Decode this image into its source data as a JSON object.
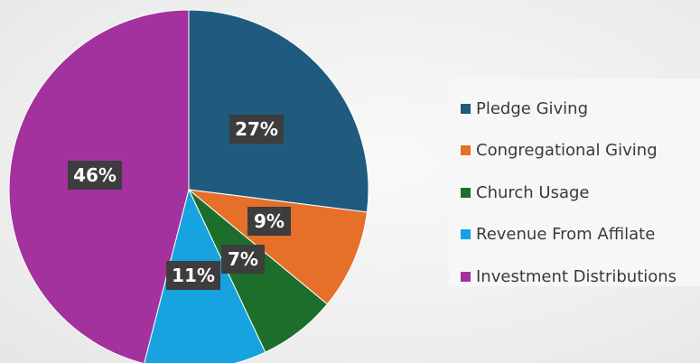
{
  "chart_data": {
    "type": "pie",
    "categories": [
      "Pledge Giving",
      "Congregational Giving",
      "Church Usage",
      "Revenue From Affilate",
      "Investment Distributions"
    ],
    "values": [
      27,
      9,
      7,
      11,
      46
    ],
    "labels": [
      "27%",
      "9%",
      "7%",
      "11%",
      "46%"
    ],
    "colors": [
      "#1f5b7e",
      "#e66f29",
      "#1c6e2a",
      "#17a2e0",
      "#a3329e"
    ],
    "label_box_color": "#3d3d3d",
    "legend_position": "right",
    "start_angle": "12 o'clock",
    "direction": "clockwise"
  }
}
